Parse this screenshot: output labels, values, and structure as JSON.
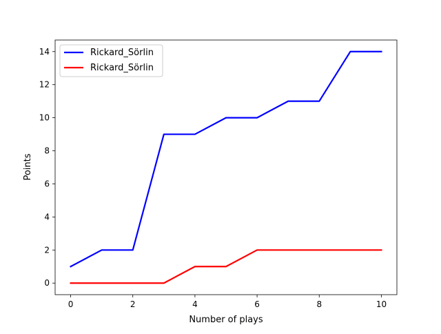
{
  "chart_data": {
    "type": "line",
    "title": "",
    "xlabel": "Number of plays",
    "ylabel": "Points",
    "xlim": [
      -0.5,
      10.5
    ],
    "ylim": [
      -0.7,
      14.7
    ],
    "xticks": [
      0,
      2,
      4,
      6,
      8,
      10
    ],
    "yticks": [
      0,
      2,
      4,
      6,
      8,
      10,
      12,
      14
    ],
    "grid": false,
    "legend_position": "top-left",
    "x": [
      0,
      1,
      2,
      3,
      4,
      5,
      6,
      7,
      8,
      9,
      10
    ],
    "series": [
      {
        "name": "Rickard_Sörlin",
        "color": "#0000ff",
        "values": [
          1,
          2,
          2,
          9,
          9,
          10,
          10,
          11,
          11,
          14,
          14
        ]
      },
      {
        "name": "Rickard_Sörlin",
        "color": "#ff0000",
        "values": [
          0,
          0,
          0,
          0,
          1,
          1,
          2,
          2,
          2,
          2,
          2
        ]
      }
    ]
  }
}
